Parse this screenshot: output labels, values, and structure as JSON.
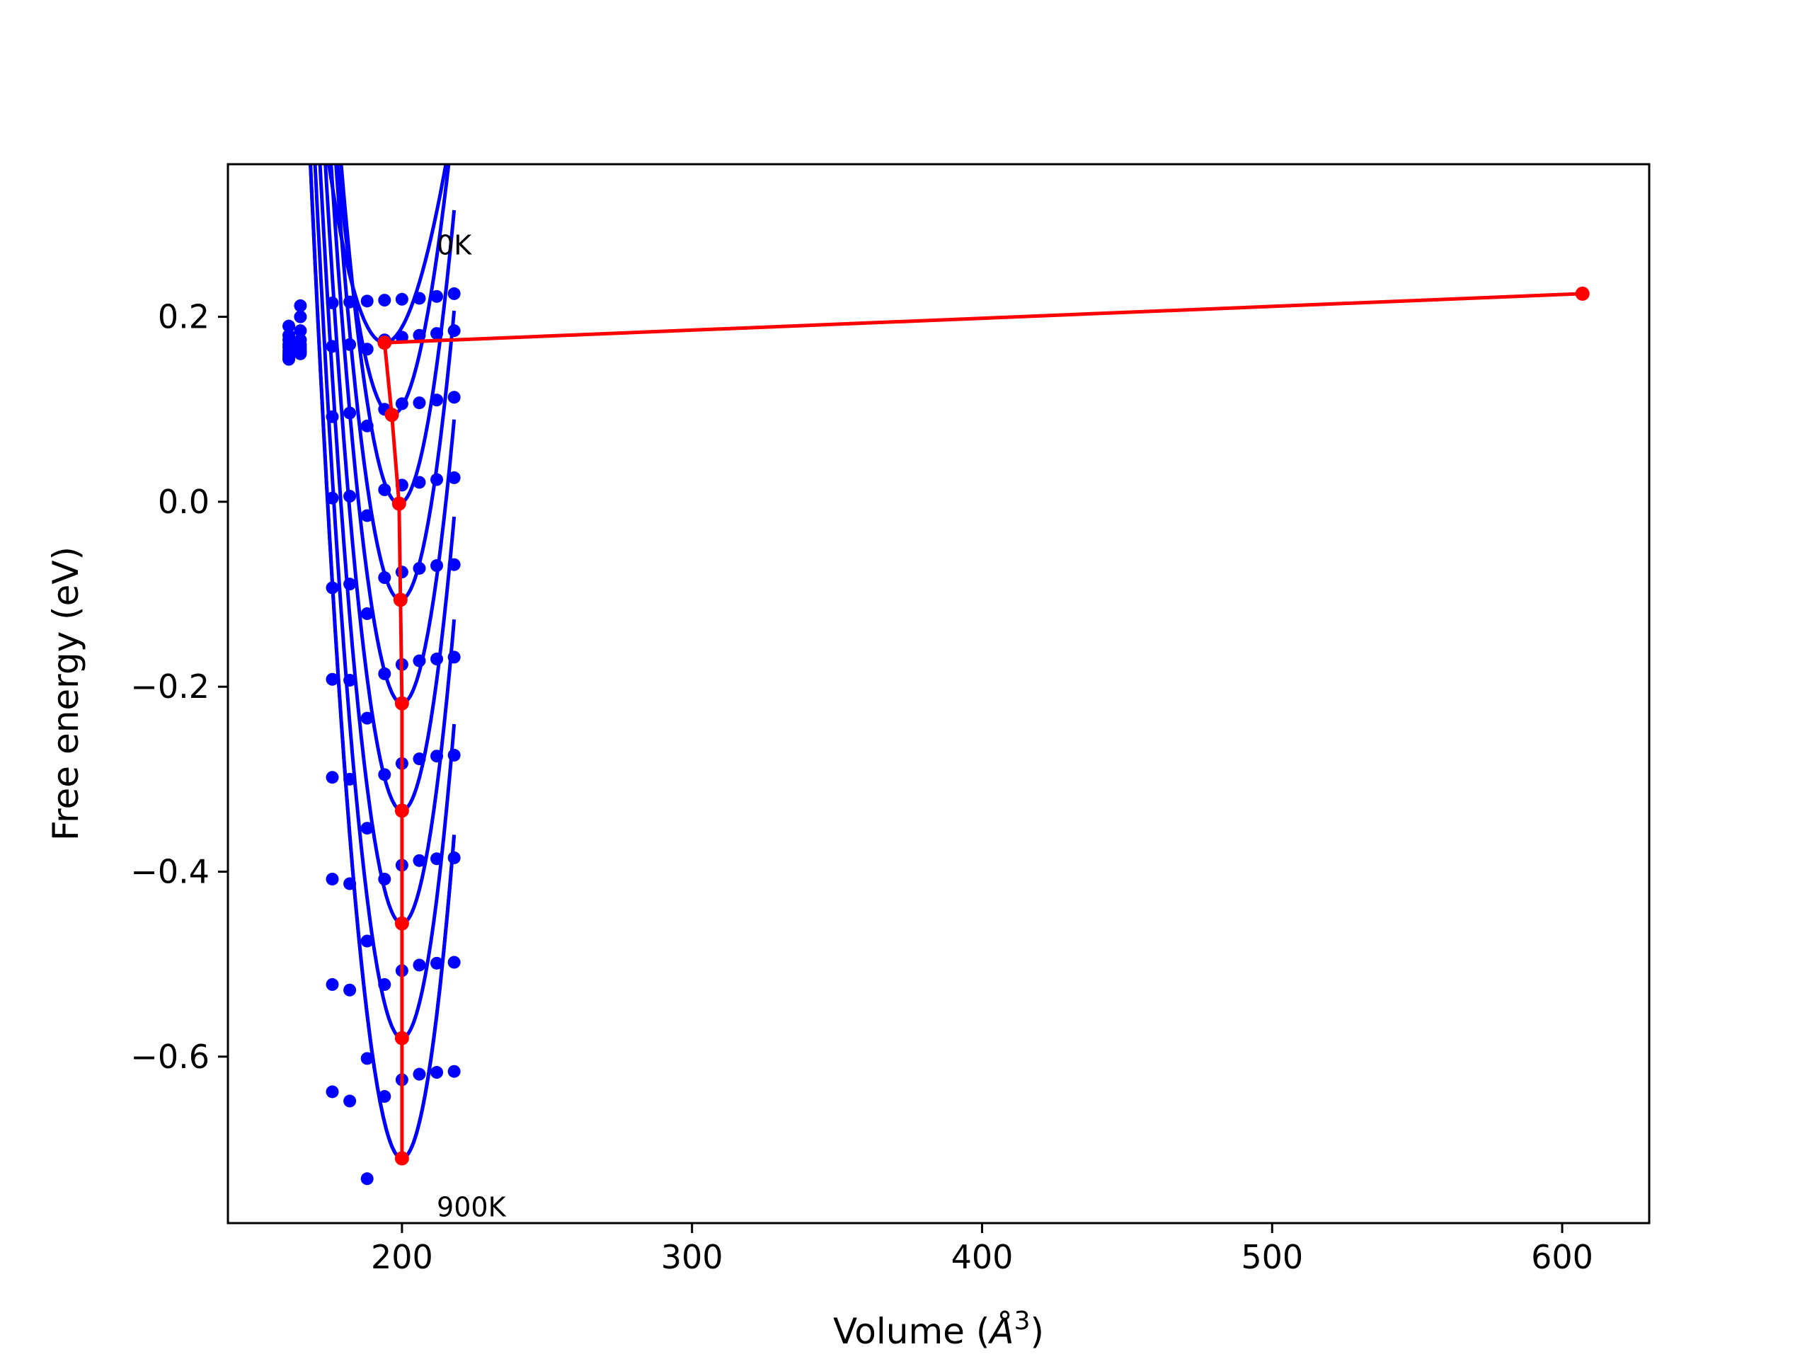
{
  "chart_data": {
    "type": "scatter",
    "title": "",
    "xlabel_main": "Volume (",
    "xlabel_unit": "Å",
    "xlabel_sup": "3",
    "xlabel_close": ")",
    "ylabel": "Free energy (eV)",
    "xlim": [
      140,
      630
    ],
    "ylim": [
      -0.78,
      0.365
    ],
    "xticks": [
      200,
      300,
      400,
      500,
      600
    ],
    "xtick_labels": [
      "200",
      "300",
      "400",
      "500",
      "600"
    ],
    "yticks": [
      0.2,
      0.0,
      -0.2,
      -0.4,
      -0.6
    ],
    "ytick_labels": [
      "0.2",
      "0.0",
      "−0.2",
      "−0.4",
      "−0.6"
    ],
    "grid": false,
    "colors": {
      "points": "#0000ff",
      "fits": "#0000ff",
      "equilibrium": "#ff0000",
      "axes": "#000000"
    },
    "annotations": [
      {
        "text": "0K",
        "x": 212,
        "y": 0.278
      },
      {
        "text": "900K",
        "x": 212,
        "y": -0.762
      }
    ],
    "volumes": [
      161,
      165,
      176,
      182,
      188,
      194,
      200,
      206,
      212,
      218
    ],
    "series": [
      {
        "points": [
          0.19,
          0.212,
          0.215,
          0.216,
          0.217,
          0.218,
          0.219,
          0.22,
          0.222,
          0.225
        ],
        "fit": {
          "vmin": 194,
          "fmin": 0.172,
          "a": 0.00048,
          "b": -2.3e-06
        }
      },
      {
        "points": [
          0.18,
          0.2,
          0.168,
          0.17,
          0.165,
          0.175,
          0.178,
          0.18,
          0.182,
          0.185
        ],
        "fit": {
          "vmin": 196.5,
          "fmin": 0.094,
          "a": 0.00074,
          "b": -1.8e-06
        }
      },
      {
        "points": [
          0.175,
          0.185,
          0.092,
          0.096,
          0.082,
          0.1,
          0.106,
          0.107,
          0.11,
          0.113
        ],
        "fit": {
          "vmin": 199,
          "fmin": -0.002,
          "a": 0.0009,
          "b": -1.1e-06
        }
      },
      {
        "points": [
          0.17,
          0.175,
          0.004,
          0.006,
          -0.015,
          0.013,
          0.018,
          0.021,
          0.024,
          0.026
        ],
        "fit": {
          "vmin": 199.5,
          "fmin": -0.106,
          "a": 0.00093,
          "b": -9e-07
        }
      },
      {
        "points": [
          0.167,
          0.17,
          -0.093,
          -0.089,
          -0.121,
          -0.082,
          -0.076,
          -0.072,
          -0.069,
          -0.068
        ],
        "fit": {
          "vmin": 200,
          "fmin": -0.218,
          "a": 0.00096,
          "b": -7e-07
        }
      },
      {
        "points": [
          0.163,
          0.167,
          -0.192,
          -0.193,
          -0.234,
          -0.186,
          -0.176,
          -0.172,
          -0.17,
          -0.168
        ],
        "fit": {
          "vmin": 200,
          "fmin": -0.334,
          "a": 0.00099,
          "b": -5e-07
        }
      },
      {
        "points": [
          0.16,
          0.165,
          -0.298,
          -0.3,
          -0.353,
          -0.295,
          -0.283,
          -0.278,
          -0.275,
          -0.274
        ],
        "fit": {
          "vmin": 200,
          "fmin": -0.456,
          "a": 0.00102,
          "b": -3e-07
        }
      },
      {
        "points": [
          0.158,
          0.163,
          -0.408,
          -0.413,
          -0.475,
          -0.408,
          -0.393,
          -0.388,
          -0.386,
          -0.385
        ],
        "fit": {
          "vmin": 200,
          "fmin": -0.58,
          "a": 0.00105,
          "b": -1e-07
        }
      },
      {
        "points": [
          0.156,
          0.162,
          -0.522,
          -0.528,
          -0.602,
          -0.522,
          -0.507,
          -0.501,
          -0.499,
          -0.498
        ],
        "fit": {
          "vmin": 200,
          "fmin": -0.71,
          "a": 0.00108,
          "b": 0.0
        }
      },
      {
        "points": [
          0.154,
          0.16,
          -0.638,
          -0.648,
          -0.732,
          -0.643,
          -0.625,
          -0.619,
          -0.617,
          -0.616
        ],
        "fit": {
          "vmin": 200,
          "fmin": -0.71,
          "a": 0.00108,
          "b": 0.0
        }
      }
    ],
    "equilibrium": {
      "x": [
        607,
        194,
        196.5,
        199,
        199.5,
        200,
        200,
        200,
        200,
        200
      ],
      "y": [
        0.225,
        0.172,
        0.094,
        -0.002,
        -0.106,
        -0.218,
        -0.334,
        -0.456,
        -0.58,
        -0.71
      ]
    }
  }
}
